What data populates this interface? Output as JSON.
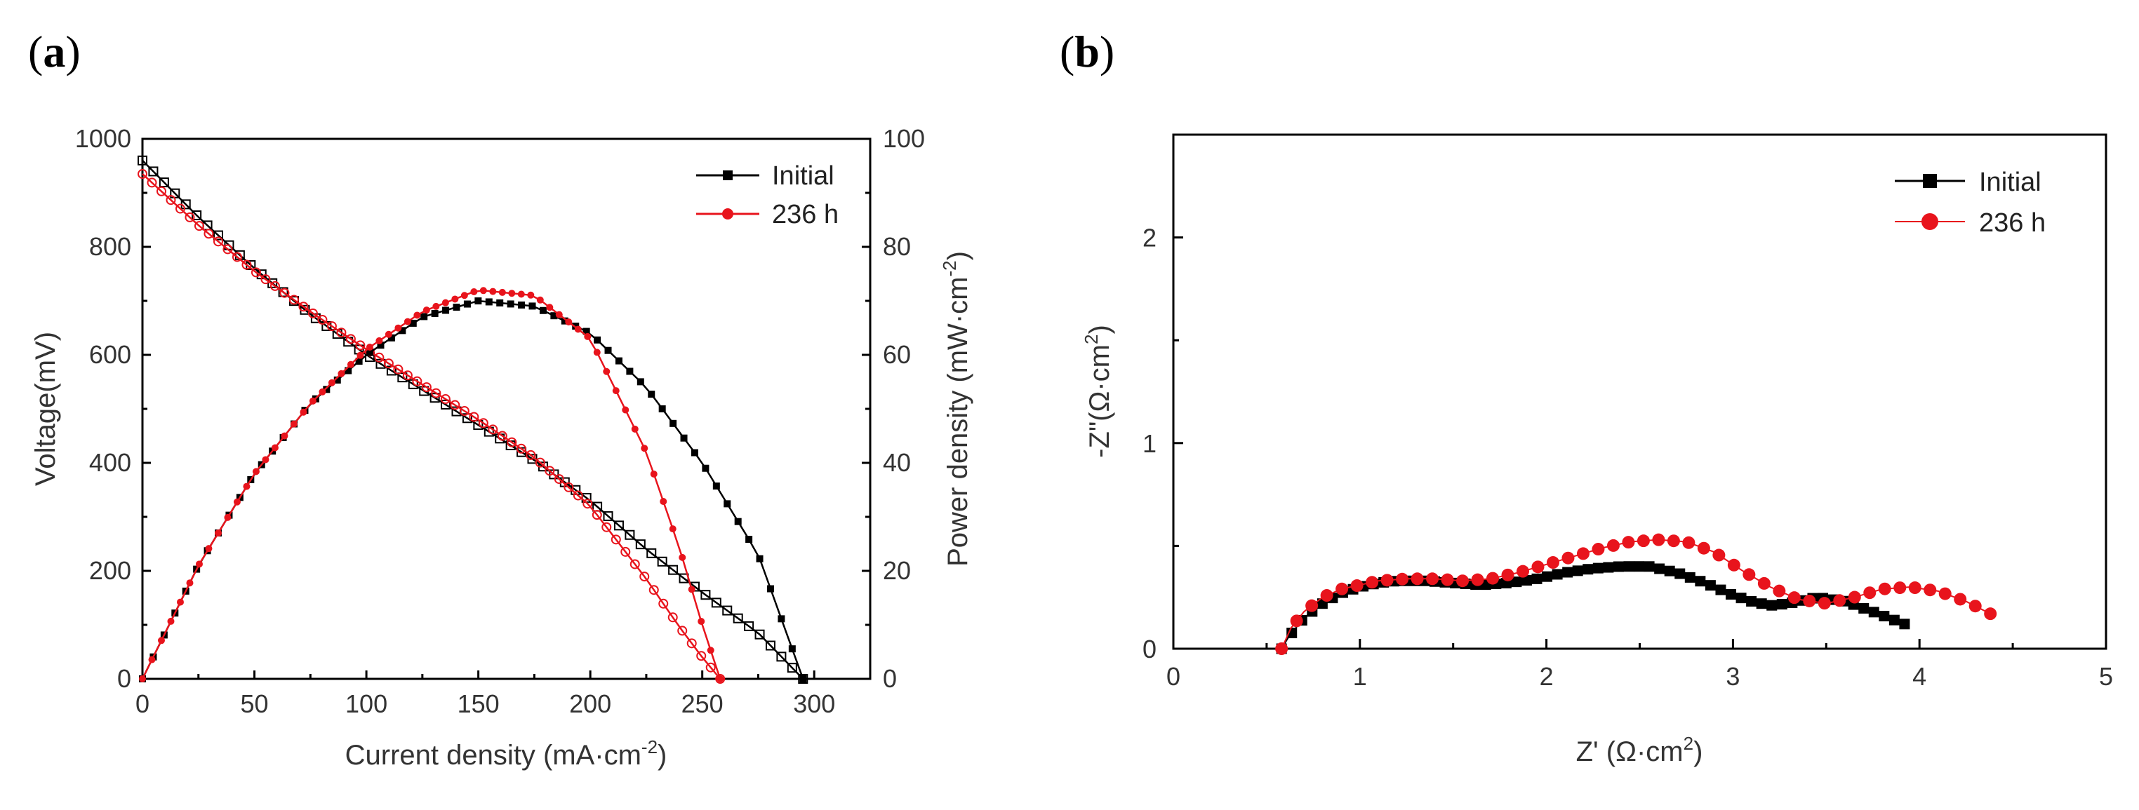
{
  "panels": [
    {
      "id": "a",
      "panel_label": {
        "open": "(",
        "letter": "a",
        "close": ")"
      },
      "xlabel": {
        "main": "Current density (mA·cm",
        "sup": "-2",
        "end": ")"
      },
      "ylabel_left": "Voltage(mV)",
      "ylabel_right": {
        "main": "Power density (mW·cm",
        "sup": "-2",
        "end": ")"
      },
      "xlim": [
        0,
        325
      ],
      "ylim_left": [
        0,
        1000
      ],
      "ylim_right": [
        0,
        100
      ],
      "x_ticks": [
        0,
        50,
        100,
        150,
        200,
        250,
        300
      ],
      "x_tick_labels": [
        "0",
        "50",
        "100",
        "150",
        "200",
        "250",
        "300"
      ],
      "y_left_ticks": [
        0,
        200,
        400,
        600,
        800,
        1000
      ],
      "y_left_tick_labels": [
        "0",
        "200",
        "400",
        "600",
        "800",
        "1000"
      ],
      "y_right_ticks": [
        0,
        20,
        40,
        60,
        80,
        100
      ],
      "y_right_tick_labels": [
        "0",
        "20",
        "40",
        "60",
        "80",
        "100"
      ],
      "legend": [
        {
          "label": "Initial",
          "color": "#000000"
        },
        {
          "label": "236 h",
          "color": "#e8141c"
        }
      ]
    },
    {
      "id": "b",
      "panel_label": {
        "open": "(",
        "letter": "b",
        "close": ")"
      },
      "xlabel": {
        "main": "Z' (Ω·cm",
        "sup": "2",
        "end": ")"
      },
      "ylabel": {
        "main": "-Z\"(Ω·cm",
        "sup": "2",
        "end": ")"
      },
      "xlim": [
        0,
        5
      ],
      "ylim": [
        0,
        2.5
      ],
      "x_ticks": [
        0,
        1,
        2,
        3,
        4,
        5
      ],
      "x_tick_labels": [
        "0",
        "1",
        "2",
        "3",
        "4",
        "5"
      ],
      "y_ticks": [
        0,
        1,
        2
      ],
      "y_tick_labels": [
        "0",
        "1",
        "2"
      ],
      "legend": [
        {
          "label": "Initial",
          "color": "#000000"
        },
        {
          "label": "236 h",
          "color": "#e8141c"
        }
      ]
    }
  ],
  "chart_data": [
    {
      "type": "line",
      "title": "",
      "xlabel": "Current density (mA·cm-2)",
      "ylabel": "Voltage(mV)",
      "ylabel_right": "Power density (mW·cm-2)",
      "xlim": [
        0,
        325
      ],
      "ylim": [
        0,
        1000
      ],
      "ylim_right": [
        0,
        100
      ],
      "series": [
        {
          "name": "Initial",
          "kind": "voltage",
          "axis": "left",
          "color": "#000000",
          "marker": "open-square",
          "x": [
            0,
            25,
            50,
            75,
            100,
            125,
            150,
            175,
            200,
            225,
            250,
            275,
            295
          ],
          "y": [
            960,
            855,
            760,
            675,
            600,
            535,
            470,
            405,
            330,
            240,
            160,
            85,
            0
          ]
        },
        {
          "name": "236 h",
          "kind": "voltage",
          "axis": "left",
          "color": "#e8141c",
          "marker": "open-circle",
          "x": [
            0,
            25,
            50,
            75,
            100,
            125,
            150,
            175,
            200,
            225,
            240,
            250,
            258
          ],
          "y": [
            935,
            840,
            755,
            680,
            610,
            545,
            480,
            410,
            320,
            185,
            95,
            40,
            0
          ]
        },
        {
          "name": "Initial",
          "kind": "power",
          "axis": "right",
          "color": "#000000",
          "marker": "filled-square",
          "x": [
            0,
            25,
            50,
            75,
            100,
            125,
            150,
            175,
            200,
            225,
            250,
            275,
            295
          ],
          "y": [
            0,
            21,
            38,
            51,
            60,
            67,
            70,
            69,
            64,
            54,
            40,
            23,
            0
          ]
        },
        {
          "name": "236 h",
          "kind": "power",
          "axis": "right",
          "color": "#e8141c",
          "marker": "filled-circle",
          "x": [
            0,
            25,
            50,
            75,
            100,
            125,
            150,
            175,
            200,
            225,
            240,
            250,
            258
          ],
          "y": [
            0,
            21,
            38,
            51,
            61,
            68,
            72,
            71,
            63,
            42,
            24,
            10,
            0
          ]
        }
      ]
    },
    {
      "type": "scatter",
      "title": "",
      "xlabel": "Z' (Ω·cm2)",
      "ylabel": "-Z\"(Ω·cm2)",
      "xlim": [
        0,
        5
      ],
      "ylim": [
        0,
        2.5
      ],
      "series": [
        {
          "name": "Initial",
          "color": "#000000",
          "marker": "filled-square",
          "x": [
            0.58,
            0.62,
            0.7,
            0.8,
            0.9,
            1.0,
            1.1,
            1.2,
            1.35,
            1.5,
            1.65,
            1.8,
            1.95,
            2.1,
            2.25,
            2.4,
            2.55,
            2.7,
            2.85,
            3.0,
            3.1,
            3.2,
            3.3,
            3.45,
            3.6,
            3.75,
            3.92
          ],
          "y": [
            0.0,
            0.06,
            0.15,
            0.22,
            0.27,
            0.3,
            0.32,
            0.33,
            0.33,
            0.32,
            0.31,
            0.32,
            0.34,
            0.37,
            0.39,
            0.4,
            0.4,
            0.37,
            0.32,
            0.26,
            0.23,
            0.21,
            0.22,
            0.25,
            0.23,
            0.18,
            0.12
          ]
        },
        {
          "name": "236 h",
          "color": "#e8141c",
          "marker": "filled-circle",
          "x": [
            0.58,
            0.63,
            0.7,
            0.8,
            0.9,
            1.0,
            1.1,
            1.25,
            1.4,
            1.55,
            1.7,
            1.85,
            2.0,
            2.15,
            2.3,
            2.45,
            2.6,
            2.75,
            2.9,
            3.05,
            3.2,
            3.35,
            3.5,
            3.65,
            3.8,
            3.95,
            4.1,
            4.25,
            4.38
          ],
          "y": [
            0.0,
            0.1,
            0.18,
            0.25,
            0.29,
            0.31,
            0.33,
            0.34,
            0.34,
            0.33,
            0.34,
            0.37,
            0.41,
            0.45,
            0.49,
            0.52,
            0.53,
            0.52,
            0.47,
            0.38,
            0.3,
            0.24,
            0.22,
            0.25,
            0.29,
            0.3,
            0.28,
            0.23,
            0.17
          ]
        }
      ]
    }
  ]
}
